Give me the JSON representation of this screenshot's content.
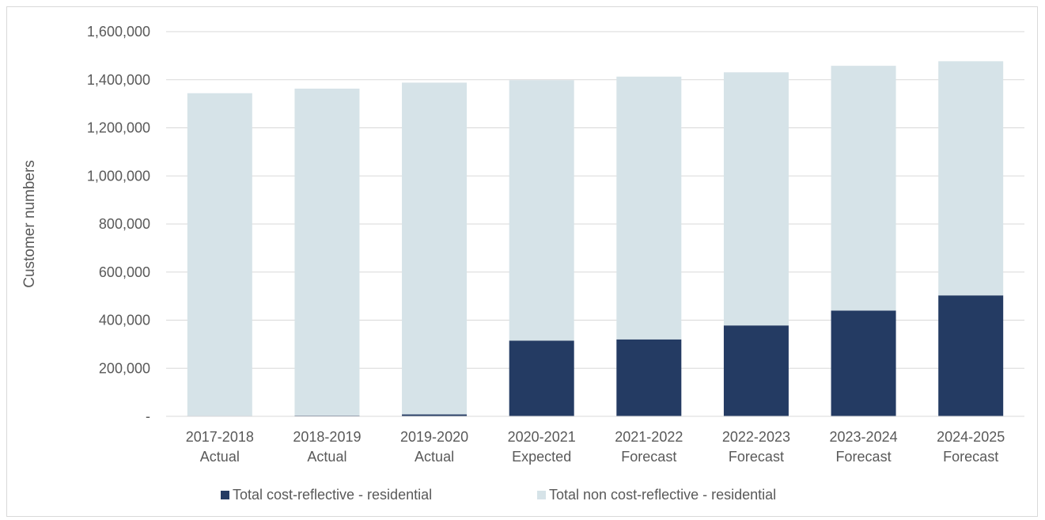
{
  "chart_data": {
    "type": "bar",
    "stacked": true,
    "title": "",
    "xlabel": "",
    "ylabel": "Customer numbers",
    "ylim": [
      0,
      1600000
    ],
    "yticks": [
      0,
      200000,
      400000,
      600000,
      800000,
      1000000,
      1200000,
      1400000,
      1600000
    ],
    "ytick_labels": [
      "-",
      "200,000",
      "400,000",
      "600,000",
      "800,000",
      "1,000,000",
      "1,200,000",
      "1,400,000",
      "1,600,000"
    ],
    "grid": true,
    "legend_position": "bottom",
    "categories": [
      [
        "2017-2018",
        "Actual"
      ],
      [
        "2018-2019",
        "Actual"
      ],
      [
        "2019-2020",
        "Actual"
      ],
      [
        "2020-2021",
        "Expected"
      ],
      [
        "2021-2022",
        "Forecast"
      ],
      [
        "2022-2023",
        "Forecast"
      ],
      [
        "2023-2024",
        "Forecast"
      ],
      [
        "2024-2025",
        "Forecast"
      ]
    ],
    "series": [
      {
        "name": "Total cost-reflective - residential",
        "color": "#243b63",
        "values": [
          2000,
          3000,
          8000,
          315000,
          320000,
          378000,
          440000,
          503000
        ]
      },
      {
        "name": "Total non cost-reflective - residential",
        "color": "#d6e3e8",
        "values": [
          1342000,
          1360000,
          1380000,
          1083000,
          1093000,
          1053000,
          1018000,
          974000
        ]
      }
    ]
  }
}
